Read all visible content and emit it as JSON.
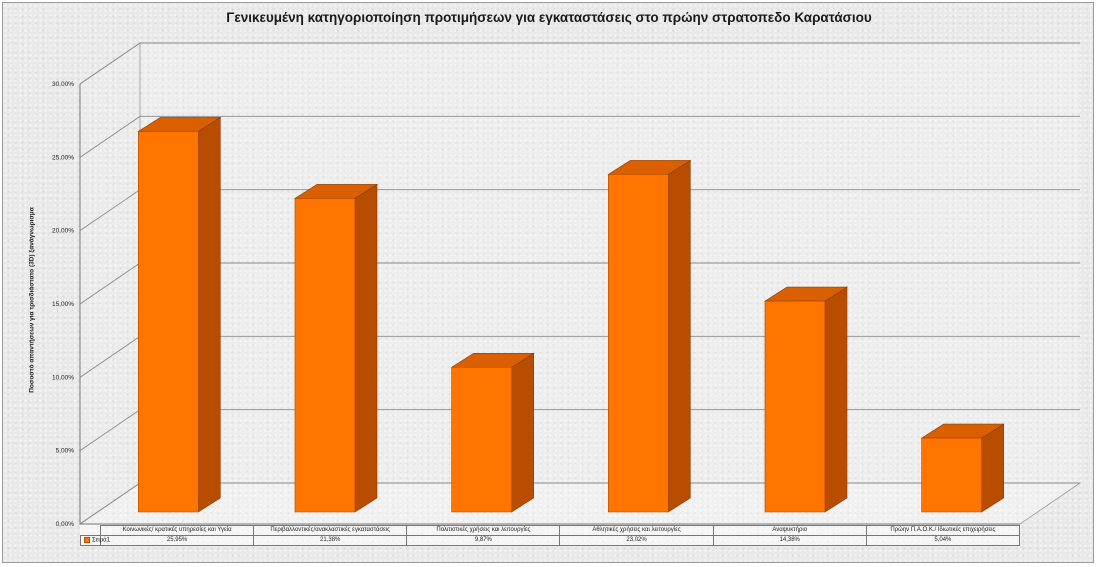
{
  "chart_data": {
    "type": "bar",
    "title": "Γενικευμένη κατηγοριοποίηση προτιμήσεων για εγκαταστάσεις στο πρώην στρατοπεδο Καρατάσιου",
    "ylabel": "Ποσοστό απαντήσεων για τρισδιάστατο (3D) ξανάγνωρισμα",
    "xlabel": "",
    "ylim": [
      0,
      0.3
    ],
    "y_ticks": [
      "0,00%",
      "5,00%",
      "10,00%",
      "15,00%",
      "20,00%",
      "25,00%",
      "30,00%"
    ],
    "categories": [
      "Κοινωνικές/ κρατικές υπηρεσίες και Υγεία",
      "Περιβαλλοντικές/ανακλαστικές εγκαταστάσεις",
      "Πολιτιστικές χρήσεις και λειτουργίες",
      "Αθλητικές χρήσεις και λειτουργίες",
      "Αναψυκτήριο",
      "Πρώην Π.Α.Ο.Κ./ Ιδιωτικές επιχειρήσεις"
    ],
    "series": [
      {
        "name": "Σειρά1",
        "values": [
          0.2595,
          0.2138,
          0.0987,
          0.2302,
          0.1438,
          0.0504
        ],
        "value_labels": [
          "25,95%",
          "21,38%",
          "9,87%",
          "23,02%",
          "14,38%",
          "5,04%"
        ],
        "color": "#ff7500"
      }
    ],
    "grid": true,
    "legend": "data-table"
  }
}
